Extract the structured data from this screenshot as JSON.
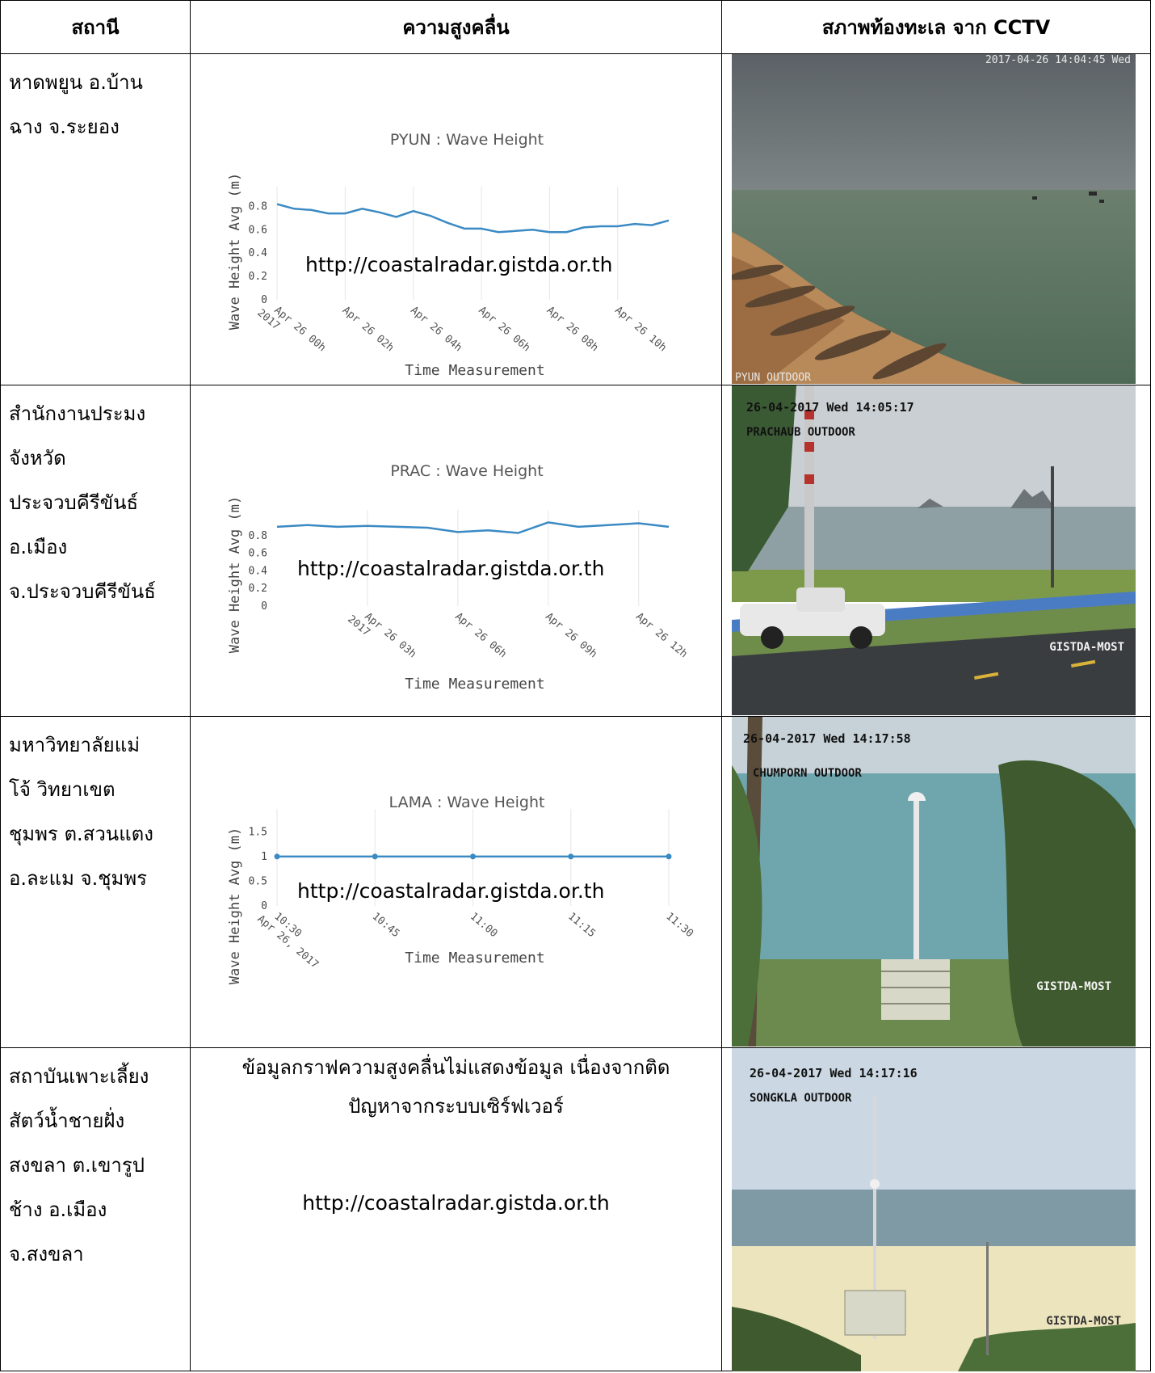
{
  "headers": {
    "station": "สถานี",
    "wave": "ความสูงคลื่น",
    "cctv": "สภาพท้องทะเล จาก CCTV"
  },
  "rows": [
    {
      "station_lines": [
        "หาดพยูน อ.บ้าน",
        "ฉาง จ.ระยอง"
      ],
      "chart": {
        "title": "PYUN : Wave Height",
        "ylabel": "Wave Height Avg (m)",
        "xlabel": "Time Measurement",
        "url": "http://coastalradar.gistda.or.th",
        "yticks": [
          "0.8",
          "0.6",
          "0.4",
          "0.2",
          "0"
        ],
        "xticks": [
          "Apr 26 00h 2017",
          "Apr 26 02h",
          "Apr 26 04h",
          "Apr 26 06h",
          "Apr 26 08h",
          "Apr 26 10h"
        ]
      },
      "cam": {
        "timestamp": "2017-04-26 14:04:45 Wed",
        "label": "PYUN OUTDOOR",
        "brand": ""
      }
    },
    {
      "station_lines": [
        "สำนักงานประมง",
        "จังหวัด",
        "ประจวบคีรีขันธ์",
        "อ.เมือง",
        "จ.ประจวบคีรีขันธ์"
      ],
      "chart": {
        "title": "PRAC : Wave Height",
        "ylabel": "Wave Height Avg (m)",
        "xlabel": "Time Measurement",
        "url": "http://coastalradar.gistda.or.th",
        "yticks": [
          "0.8",
          "0.6",
          "0.4",
          "0.2",
          "0"
        ],
        "xticks": [
          "Apr 26 03h 2017",
          "Apr 26 06h",
          "Apr 26 09h",
          "Apr 26 12h"
        ]
      },
      "cam": {
        "timestamp": "26-04-2017 Wed 14:05:17",
        "label": "PRACHAUB OUTDOOR",
        "brand": "GISTDA-MOST"
      }
    },
    {
      "station_lines": [
        "มหาวิทยาลัยแม่",
        "โจ้ วิทยาเขต",
        "ชุมพร ต.สวนแตง",
        "อ.ละแม จ.ชุมพร"
      ],
      "chart": {
        "title": "LAMA : Wave Height",
        "ylabel": "Wave Height Avg (m)",
        "xlabel": "Time Measurement",
        "url": "http://coastalradar.gistda.or.th",
        "yticks": [
          "1.5",
          "1",
          "0.5",
          "0"
        ],
        "xticks": [
          "10:30 Apr 26, 2017",
          "10:45",
          "11:00",
          "11:15",
          "11:30"
        ]
      },
      "cam": {
        "timestamp": "26-04-2017 Wed 14:17:58",
        "label": "CHUMPORN OUTDOOR",
        "brand": "GISTDA-MOST"
      }
    },
    {
      "station_lines": [
        "สถาบันเพาะเลี้ยง",
        "สัตว์น้ำชายฝั่ง",
        "สงขลา ต.เขารูป",
        "ช้าง อ.เมือง",
        "จ.สงขลา"
      ],
      "note_line1": "ข้อมูลกราฟความสูงคลื่นไม่แสดงข้อมูล เนื่องจากติด",
      "note_line2": "ปัญหาจากระบบเซิร์ฟเวอร์",
      "url": "http://coastalradar.gistda.or.th",
      "cam": {
        "timestamp": "26-04-2017 Wed 14:17:16",
        "label": "SONGKLA OUTDOOR",
        "brand": "GISTDA-MOST"
      }
    }
  ],
  "chart_data": [
    {
      "type": "line",
      "title": "PYUN : Wave Height",
      "xlabel": "Time Measurement",
      "ylabel": "Wave Height Avg (m)",
      "ylim": [
        0,
        0.9
      ],
      "x": [
        "00:00",
        "00:30",
        "01:00",
        "01:30",
        "02:00",
        "02:30",
        "03:00",
        "03:30",
        "04:00",
        "04:30",
        "05:00",
        "05:30",
        "06:00",
        "06:30",
        "07:00",
        "07:30",
        "08:00",
        "08:30",
        "09:00",
        "09:30",
        "10:00",
        "10:30",
        "11:00",
        "11:30"
      ],
      "series": [
        {
          "values": [
            0.82,
            0.78,
            0.77,
            0.74,
            0.74,
            0.78,
            0.75,
            0.71,
            0.76,
            0.72,
            0.66,
            0.61,
            0.61,
            0.58,
            0.59,
            0.6,
            0.58,
            0.58,
            0.62,
            0.63,
            0.63,
            0.65,
            0.64,
            0.68
          ]
        }
      ]
    },
    {
      "type": "line",
      "title": "PRAC : Wave Height",
      "xlabel": "Time Measurement",
      "ylabel": "Wave Height Avg (m)",
      "ylim": [
        0,
        1.0
      ],
      "x": [
        "00:00",
        "01:00",
        "02:00",
        "03:00",
        "04:00",
        "05:00",
        "06:00",
        "07:00",
        "08:00",
        "09:00",
        "10:00",
        "11:00",
        "12:00",
        "13:00"
      ],
      "series": [
        {
          "values": [
            0.9,
            0.92,
            0.9,
            0.91,
            0.9,
            0.89,
            0.84,
            0.86,
            0.83,
            0.95,
            0.9,
            0.92,
            0.94,
            0.9
          ]
        }
      ]
    },
    {
      "type": "line",
      "title": "LAMA : Wave Height",
      "xlabel": "Time Measurement",
      "ylabel": "Wave Height Avg (m)",
      "ylim": [
        0,
        1.8
      ],
      "x": [
        "10:30",
        "10:37",
        "10:45",
        "10:52",
        "11:00",
        "11:07",
        "11:15",
        "11:22",
        "11:30"
      ],
      "series": [
        {
          "values": [
            1,
            1,
            1,
            1,
            1,
            1,
            1,
            1,
            1
          ]
        }
      ]
    }
  ]
}
